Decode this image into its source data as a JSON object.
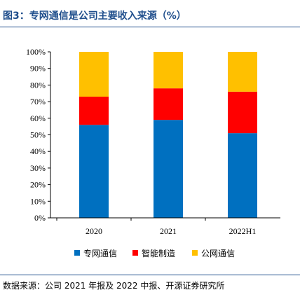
{
  "title": "图3：专网通信是公司主要收入来源（%）",
  "source": "数据来源：公司 2021 年报及 2022 中报、开源证券研究所",
  "colors": {
    "title": "#1f4e8c",
    "axis": "#000000"
  },
  "chart_data": {
    "type": "bar",
    "stacked": true,
    "categories": [
      "2020",
      "2021",
      "2022H1"
    ],
    "yticks": [
      "0%",
      "10%",
      "20%",
      "30%",
      "40%",
      "50%",
      "60%",
      "70%",
      "80%",
      "90%",
      "100%"
    ],
    "ylim": [
      0,
      100
    ],
    "grid": false,
    "legend_position": "bottom",
    "series": [
      {
        "name": "专网通信",
        "color": "#0070c0",
        "values": [
          56,
          59,
          51
        ]
      },
      {
        "name": "智能制造",
        "color": "#ff0000",
        "values": [
          17,
          19,
          25
        ]
      },
      {
        "name": "公网通信",
        "color": "#ffc000",
        "values": [
          27,
          22,
          24
        ]
      }
    ]
  }
}
